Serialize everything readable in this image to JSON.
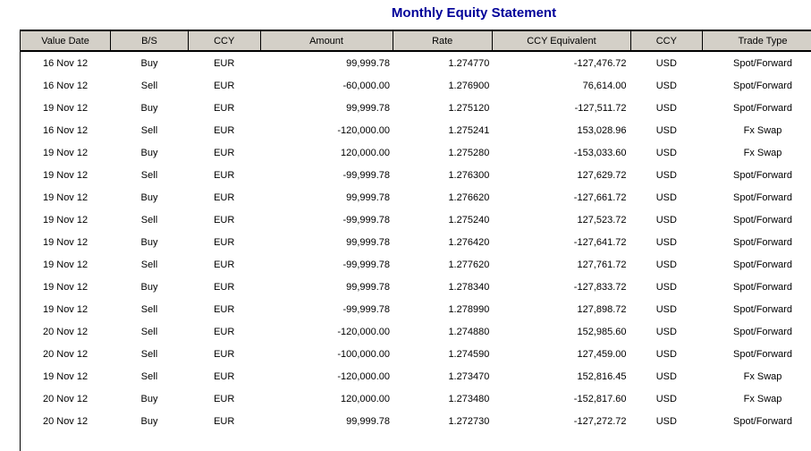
{
  "title": "Monthly Equity Statement",
  "colors": {
    "title_text": "#000099",
    "header_background": "#d4d0c8",
    "table_border": "#000000",
    "body_text": "#000000",
    "page_background": "#ffffff"
  },
  "table": {
    "columns": [
      {
        "key": "value_date",
        "label": "Value Date"
      },
      {
        "key": "bs",
        "label": "B/S"
      },
      {
        "key": "ccy",
        "label": "CCY"
      },
      {
        "key": "amount",
        "label": "Amount"
      },
      {
        "key": "rate",
        "label": "Rate"
      },
      {
        "key": "ccy_equivalent",
        "label": "CCY Equivalent"
      },
      {
        "key": "ccy2",
        "label": "CCY"
      },
      {
        "key": "trade_type",
        "label": "Trade Type"
      }
    ],
    "rows": [
      [
        "16 Nov 12",
        "Buy",
        "EUR",
        "99,999.78",
        "1.274770",
        "-127,476.72",
        "USD",
        "Spot/Forward"
      ],
      [
        "16 Nov 12",
        "Sell",
        "EUR",
        "-60,000.00",
        "1.276900",
        "76,614.00",
        "USD",
        "Spot/Forward"
      ],
      [
        "19 Nov 12",
        "Buy",
        "EUR",
        "99,999.78",
        "1.275120",
        "-127,511.72",
        "USD",
        "Spot/Forward"
      ],
      [
        "16 Nov 12",
        "Sell",
        "EUR",
        "-120,000.00",
        "1.275241",
        "153,028.96",
        "USD",
        "Fx Swap"
      ],
      [
        "19 Nov 12",
        "Buy",
        "EUR",
        "120,000.00",
        "1.275280",
        "-153,033.60",
        "USD",
        "Fx Swap"
      ],
      [
        "19 Nov 12",
        "Sell",
        "EUR",
        "-99,999.78",
        "1.276300",
        "127,629.72",
        "USD",
        "Spot/Forward"
      ],
      [
        "19 Nov 12",
        "Buy",
        "EUR",
        "99,999.78",
        "1.276620",
        "-127,661.72",
        "USD",
        "Spot/Forward"
      ],
      [
        "19 Nov 12",
        "Sell",
        "EUR",
        "-99,999.78",
        "1.275240",
        "127,523.72",
        "USD",
        "Spot/Forward"
      ],
      [
        "19 Nov 12",
        "Buy",
        "EUR",
        "99,999.78",
        "1.276420",
        "-127,641.72",
        "USD",
        "Spot/Forward"
      ],
      [
        "19 Nov 12",
        "Sell",
        "EUR",
        "-99,999.78",
        "1.277620",
        "127,761.72",
        "USD",
        "Spot/Forward"
      ],
      [
        "19 Nov 12",
        "Buy",
        "EUR",
        "99,999.78",
        "1.278340",
        "-127,833.72",
        "USD",
        "Spot/Forward"
      ],
      [
        "19 Nov 12",
        "Sell",
        "EUR",
        "-99,999.78",
        "1.278990",
        "127,898.72",
        "USD",
        "Spot/Forward"
      ],
      [
        "20 Nov 12",
        "Sell",
        "EUR",
        "-120,000.00",
        "1.274880",
        "152,985.60",
        "USD",
        "Spot/Forward"
      ],
      [
        "20 Nov 12",
        "Sell",
        "EUR",
        "-100,000.00",
        "1.274590",
        "127,459.00",
        "USD",
        "Spot/Forward"
      ],
      [
        "19 Nov 12",
        "Sell",
        "EUR",
        "-120,000.00",
        "1.273470",
        "152,816.45",
        "USD",
        "Fx Swap"
      ],
      [
        "20 Nov 12",
        "Buy",
        "EUR",
        "120,000.00",
        "1.273480",
        "-152,817.60",
        "USD",
        "Fx Swap"
      ],
      [
        "20 Nov 12",
        "Buy",
        "EUR",
        "99,999.78",
        "1.272730",
        "-127,272.72",
        "USD",
        "Spot/Forward"
      ]
    ]
  }
}
